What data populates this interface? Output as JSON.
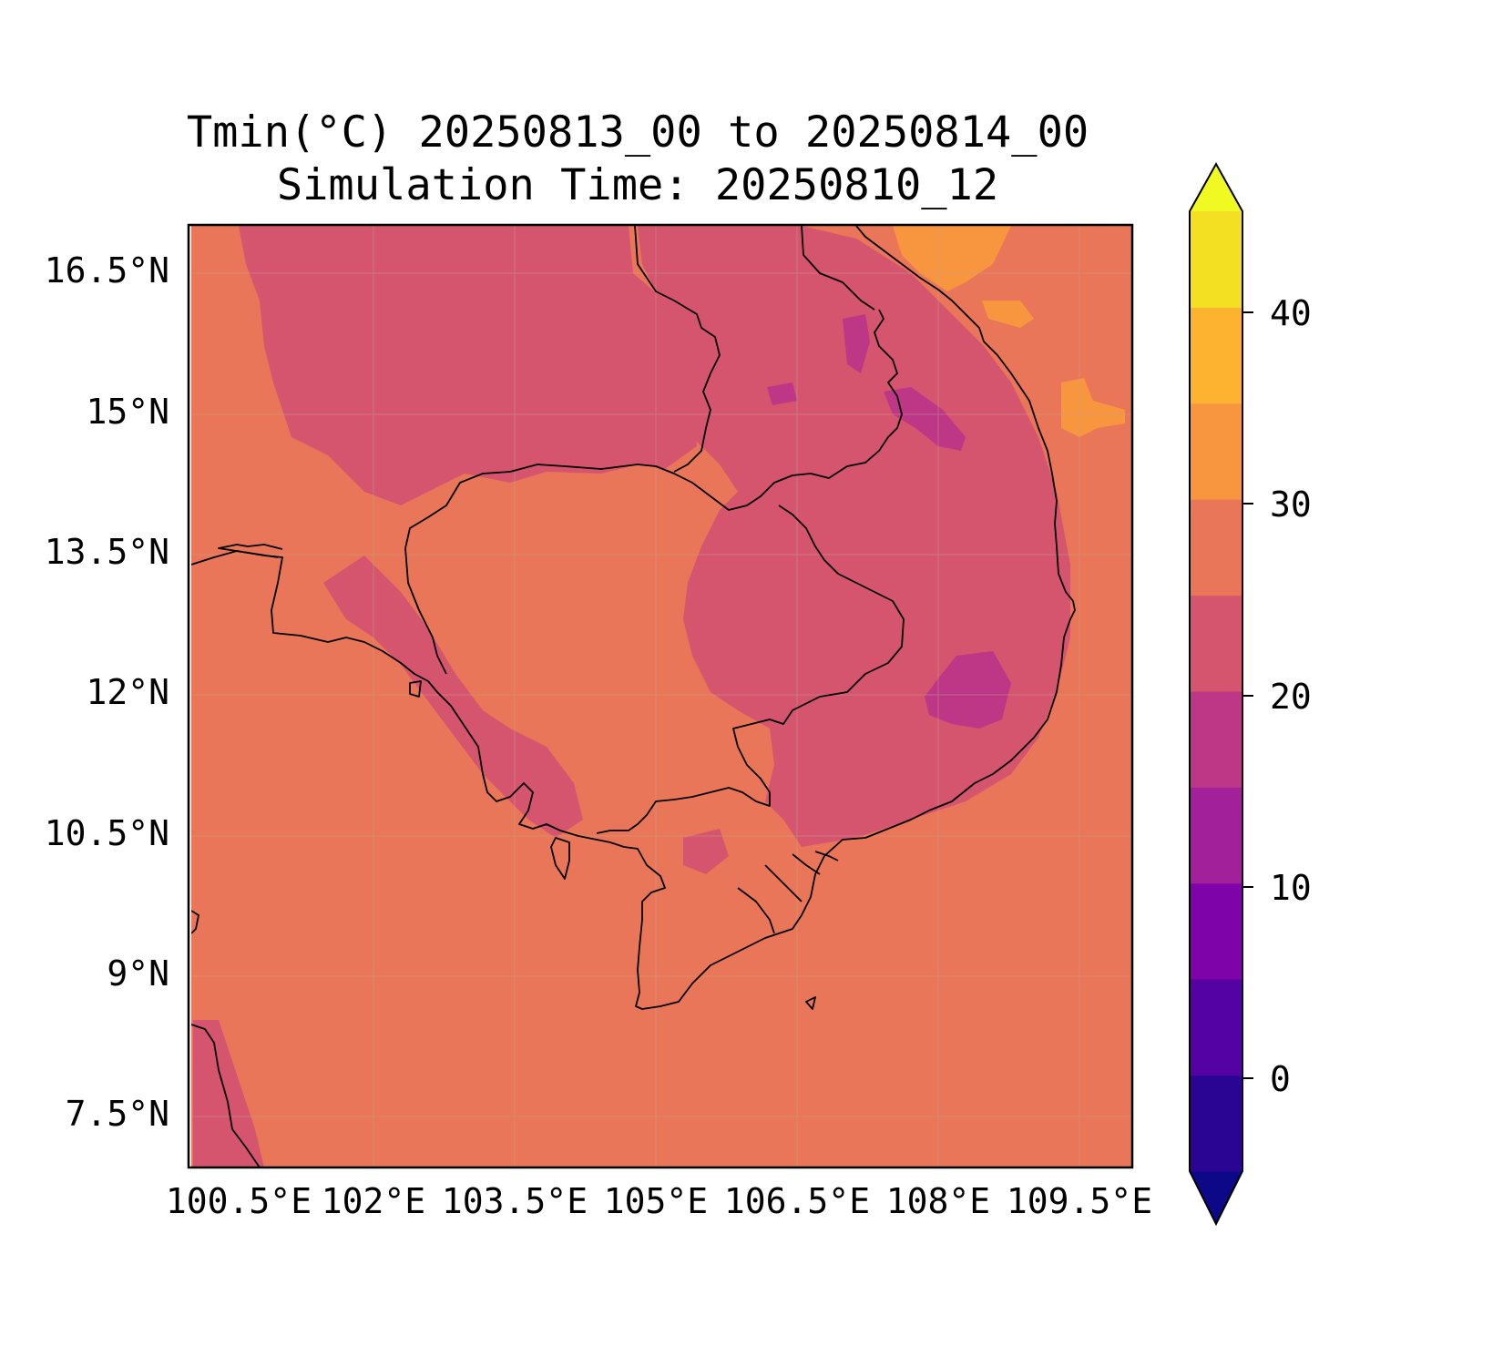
{
  "title": {
    "line1": "Tmin(°C) 20250813_00 to 20250814_00",
    "line2": "Simulation Time: 20250810_12"
  },
  "axes": {
    "lat_labels": [
      "16.5°N",
      "15°N",
      "13.5°N",
      "12°N",
      "10.5°N",
      "9°N",
      "7.5°N"
    ],
    "lon_labels": [
      "100.5°E",
      "102°E",
      "103.5°E",
      "105°E",
      "106.5°E",
      "108°E",
      "109.5°E"
    ]
  },
  "colorbar": {
    "tick_labels": [
      "0",
      "10",
      "20",
      "30",
      "40"
    ],
    "levels_from_bottom": [
      {
        "range": "< -5",
        "color": "#0d0887"
      },
      {
        "range": "-5–0",
        "color": "#2a0593"
      },
      {
        "range": "0–5",
        "color": "#5402a3"
      },
      {
        "range": "5–10",
        "color": "#7e03a8"
      },
      {
        "range": "10–15",
        "color": "#a2209a"
      },
      {
        "range": "15–20",
        "color": "#bd3786"
      },
      {
        "range": "20–25",
        "color": "#d5546e"
      },
      {
        "range": "25–30",
        "color": "#e97658"
      },
      {
        "range": "30–35",
        "color": "#f89640"
      },
      {
        "range": "35–40",
        "color": "#fdb32f"
      },
      {
        "range": "40–45",
        "color": "#f3e022"
      },
      {
        "range": "> 45",
        "color": "#f0f921"
      }
    ]
  },
  "colors": {
    "background_field": "#e97658",
    "cool_region": "#d5546e",
    "cold_spot": "#bd3786",
    "warm_spot": "#f89640",
    "hot_spot": "#fdb32f"
  }
}
